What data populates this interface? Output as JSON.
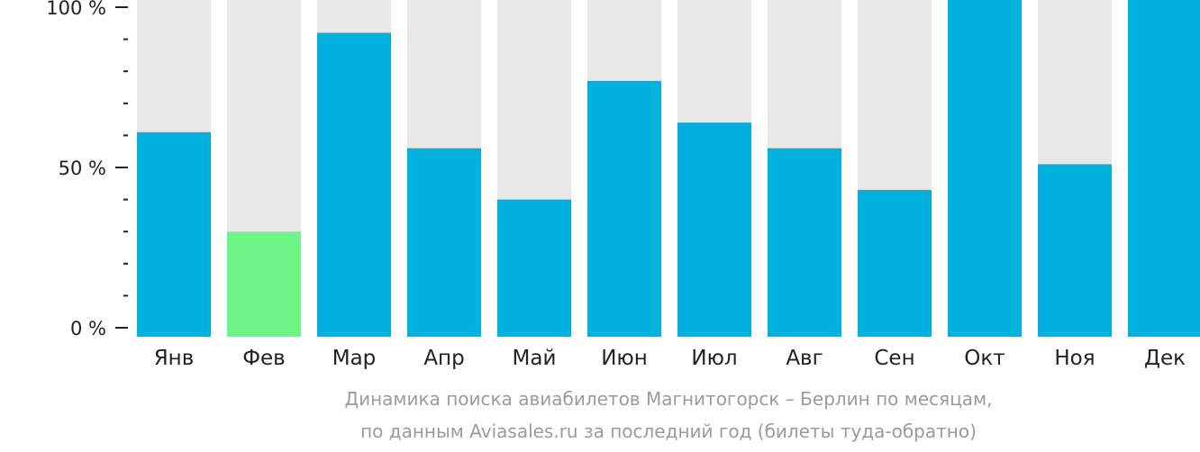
{
  "chart_data": {
    "type": "bar",
    "categories": [
      "Янв",
      "Фев",
      "Мар",
      "Апр",
      "Май",
      "Июн",
      "Июл",
      "Авг",
      "Сен",
      "Окт",
      "Ноя",
      "Дек"
    ],
    "values": [
      61,
      30,
      92,
      56,
      40,
      77,
      64,
      56,
      43,
      100,
      51,
      100
    ],
    "highlight_index": 1,
    "ylim": [
      0,
      100
    ],
    "y_ticks": [
      {
        "value": 100,
        "label": "100 %"
      },
      {
        "value": 50,
        "label": "50 %"
      },
      {
        "value": 0,
        "label": "0 %"
      }
    ],
    "colors": {
      "bar": "#00b1dd",
      "highlight": "#6ef587",
      "background_bar": "#e8e8e8",
      "axis": "#222222",
      "caption": "#9b9b9b"
    }
  },
  "caption": {
    "line1": "Динамика поиска авиабилетов Магнитогорск – Берлин по месяцам,",
    "line2": "по данным Aviasales.ru за последний год (билеты туда-обратно)"
  }
}
